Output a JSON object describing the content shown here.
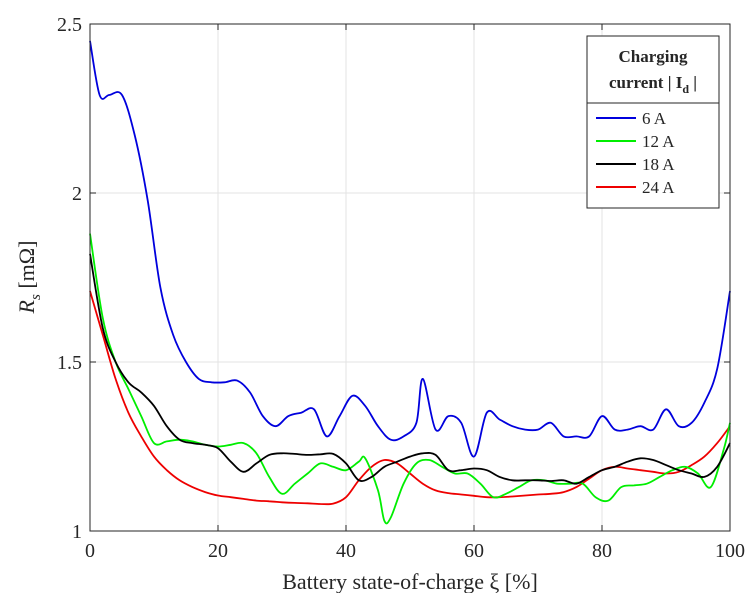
{
  "chart_data": {
    "type": "line",
    "xlabel": "Battery state-of-charge  ξ [%]",
    "ylabel": {
      "main": "R",
      "sub": "s",
      "unit": " [mΩ]"
    },
    "xlim": [
      0,
      100
    ],
    "ylim": [
      1,
      2.5
    ],
    "x_ticks": [
      0,
      20,
      40,
      60,
      80,
      100
    ],
    "y_ticks": [
      1,
      1.5,
      2,
      2.5
    ],
    "x_tick_labels": [
      "0",
      "20",
      "40",
      "60",
      "80",
      "100"
    ],
    "y_tick_labels": [
      "1",
      "1.5",
      "2",
      "2.5"
    ],
    "grid": true,
    "legend": {
      "position": "top-right",
      "title_line1": "Charging",
      "title_line2_main": "current | I",
      "title_line2_sub": "d",
      "title_line2_end": " |"
    },
    "series": [
      {
        "name": "6 A",
        "color": "#0000dd",
        "x": [
          0,
          1.5,
          3,
          5,
          7,
          9,
          11,
          13,
          15,
          17,
          19,
          21,
          23,
          25,
          27,
          29,
          31,
          33,
          35,
          37,
          39,
          41,
          43,
          45,
          47,
          49,
          51,
          52,
          54,
          56,
          58,
          60,
          62,
          64,
          66,
          68,
          70,
          72,
          74,
          76,
          78,
          80,
          82,
          84,
          86,
          88,
          90,
          92,
          94,
          96,
          98,
          100
        ],
        "y": [
          2.45,
          2.29,
          2.29,
          2.29,
          2.17,
          1.98,
          1.72,
          1.58,
          1.5,
          1.45,
          1.44,
          1.44,
          1.445,
          1.41,
          1.34,
          1.31,
          1.34,
          1.35,
          1.36,
          1.28,
          1.34,
          1.4,
          1.37,
          1.31,
          1.27,
          1.28,
          1.32,
          1.45,
          1.3,
          1.34,
          1.32,
          1.22,
          1.35,
          1.33,
          1.31,
          1.3,
          1.3,
          1.32,
          1.28,
          1.28,
          1.28,
          1.34,
          1.3,
          1.3,
          1.31,
          1.3,
          1.36,
          1.31,
          1.32,
          1.38,
          1.48,
          1.71
        ]
      },
      {
        "name": "12 A",
        "color": "#00ee00",
        "x": [
          0,
          2,
          4,
          6,
          8,
          10,
          12,
          14,
          16,
          18,
          20,
          22,
          24,
          26,
          28,
          30,
          32,
          34,
          36,
          38,
          40,
          42,
          43,
          45,
          46,
          47,
          49,
          51,
          53,
          55,
          57,
          59,
          61,
          63,
          65,
          67,
          69,
          71,
          73,
          75,
          77,
          79,
          81,
          83,
          85,
          87,
          89,
          91,
          93,
          95,
          97,
          99,
          100
        ],
        "y": [
          1.88,
          1.63,
          1.5,
          1.42,
          1.34,
          1.26,
          1.265,
          1.27,
          1.265,
          1.255,
          1.25,
          1.255,
          1.26,
          1.23,
          1.16,
          1.11,
          1.14,
          1.17,
          1.2,
          1.19,
          1.18,
          1.205,
          1.215,
          1.12,
          1.03,
          1.04,
          1.14,
          1.2,
          1.21,
          1.19,
          1.17,
          1.17,
          1.14,
          1.1,
          1.11,
          1.13,
          1.15,
          1.15,
          1.14,
          1.14,
          1.14,
          1.1,
          1.09,
          1.13,
          1.135,
          1.14,
          1.16,
          1.18,
          1.19,
          1.17,
          1.13,
          1.24,
          1.32
        ]
      },
      {
        "name": "18 A",
        "color": "#000000",
        "x": [
          0,
          2,
          4,
          6,
          8,
          10,
          12,
          14,
          16,
          18,
          20,
          22,
          24,
          26,
          28,
          30,
          32,
          34,
          36,
          38,
          40,
          42,
          44,
          46,
          48,
          50,
          52,
          54,
          56,
          58,
          60,
          62,
          64,
          66,
          68,
          70,
          72,
          74,
          76,
          78,
          80,
          82,
          84,
          86,
          88,
          90,
          92,
          94,
          96,
          98,
          100
        ],
        "y": [
          1.82,
          1.6,
          1.5,
          1.44,
          1.41,
          1.37,
          1.31,
          1.27,
          1.26,
          1.255,
          1.245,
          1.205,
          1.175,
          1.2,
          1.225,
          1.23,
          1.228,
          1.225,
          1.227,
          1.228,
          1.2,
          1.15,
          1.16,
          1.19,
          1.205,
          1.22,
          1.23,
          1.225,
          1.18,
          1.18,
          1.185,
          1.18,
          1.16,
          1.15,
          1.15,
          1.15,
          1.148,
          1.15,
          1.14,
          1.16,
          1.18,
          1.19,
          1.205,
          1.215,
          1.21,
          1.195,
          1.18,
          1.17,
          1.16,
          1.19,
          1.26
        ]
      },
      {
        "name": "24 A",
        "color": "#ee0000",
        "x": [
          0,
          2,
          4,
          6,
          8,
          10,
          12,
          14,
          16,
          18,
          20,
          22,
          24,
          26,
          28,
          30,
          32,
          34,
          36,
          38,
          40,
          42,
          44,
          46,
          48,
          50,
          52,
          54,
          56,
          58,
          60,
          62,
          64,
          66,
          68,
          70,
          72,
          74,
          76,
          78,
          80,
          82,
          84,
          86,
          88,
          90,
          92,
          94,
          96,
          98,
          100
        ],
        "y": [
          1.71,
          1.58,
          1.45,
          1.35,
          1.28,
          1.22,
          1.18,
          1.15,
          1.13,
          1.115,
          1.105,
          1.1,
          1.095,
          1.09,
          1.088,
          1.085,
          1.083,
          1.082,
          1.08,
          1.081,
          1.1,
          1.15,
          1.19,
          1.21,
          1.2,
          1.17,
          1.14,
          1.12,
          1.112,
          1.108,
          1.104,
          1.1,
          1.1,
          1.102,
          1.105,
          1.108,
          1.11,
          1.115,
          1.13,
          1.155,
          1.18,
          1.19,
          1.185,
          1.18,
          1.175,
          1.17,
          1.175,
          1.195,
          1.22,
          1.26,
          1.31
        ]
      }
    ]
  }
}
